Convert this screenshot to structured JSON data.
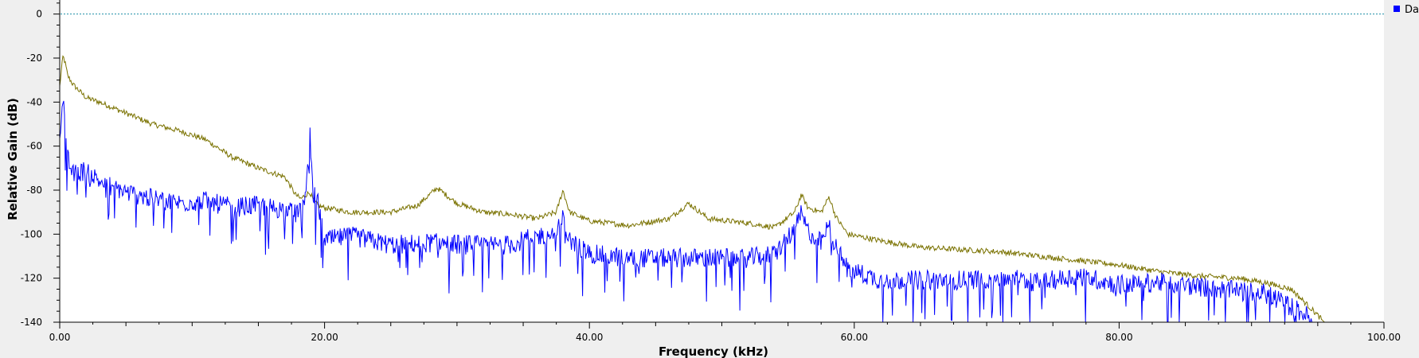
{
  "chart_data": {
    "type": "line",
    "xlabel": "Frequency (kHz)",
    "ylabel": "Relative Gain (dB)",
    "xlim": [
      0,
      100
    ],
    "ylim": [
      -140,
      10
    ],
    "x_ticks": [
      0,
      20,
      40,
      60,
      80,
      100
    ],
    "x_tick_labels": [
      "0.00",
      "20.00",
      "40.00",
      "60.00",
      "80.00",
      "100.00"
    ],
    "y_ticks": [
      0,
      -20,
      -40,
      -60,
      -80,
      -100,
      -120,
      -140
    ],
    "y_tick_labels": [
      "0",
      "-20",
      "-40",
      "-60",
      "-80",
      "-100",
      "-120",
      "-140"
    ],
    "grid": false,
    "legend_position": "top-right",
    "legend_entries": [
      {
        "label": "Da",
        "color": "#0000ff"
      }
    ],
    "reference_line": {
      "y": 0,
      "color": "#1f8fa8",
      "style": "dotted"
    },
    "series": [
      {
        "name": "Da",
        "color": "#0000ff",
        "x": [
          0,
          0.1,
          0.25,
          0.4,
          0.6,
          1,
          2,
          3,
          5,
          7,
          9,
          11,
          13,
          15,
          17,
          17.8,
          18.2,
          18.6,
          18.9,
          19.1,
          19.5,
          20,
          22,
          25,
          28,
          31,
          34,
          36,
          37.5,
          38.0,
          38.5,
          40,
          43,
          46,
          49,
          52,
          54,
          55.5,
          56.0,
          56.5,
          57.5,
          58.1,
          58.6,
          59.5,
          62,
          65,
          68,
          71,
          74,
          77,
          80,
          83,
          86,
          89,
          91,
          93,
          94.7
        ],
        "values": [
          -55,
          -45,
          -36,
          -50,
          -65,
          -72,
          -70,
          -75,
          -80,
          -83,
          -85,
          -84,
          -87,
          -86,
          -88,
          -90,
          -86,
          -80,
          -55,
          -80,
          -85,
          -102,
          -100,
          -104,
          -103,
          -104,
          -104,
          -100,
          -99,
          -92,
          -102,
          -108,
          -110,
          -110,
          -110,
          -110,
          -108,
          -97,
          -90,
          -98,
          -103,
          -95,
          -105,
          -115,
          -120,
          -120,
          -120,
          -119,
          -121,
          -118,
          -122,
          -121,
          -123,
          -125,
          -126,
          -132,
          -138
        ]
      },
      {
        "name": "",
        "color": "#7a7200",
        "x": [
          0,
          0.1,
          0.25,
          0.4,
          0.6,
          1,
          2,
          3,
          5,
          7,
          9,
          11,
          13,
          15,
          17,
          17.8,
          18.2,
          18.6,
          18.9,
          19.1,
          19.5,
          20,
          22,
          25,
          27,
          28.5,
          30,
          32,
          34,
          36,
          37.5,
          38.0,
          38.5,
          40,
          43,
          46,
          47.5,
          49,
          52,
          54,
          55.5,
          56.0,
          56.5,
          57.5,
          58.1,
          58.6,
          59.5,
          62,
          65,
          68,
          71,
          74,
          77,
          80,
          83,
          86,
          89,
          91,
          93,
          94.7,
          95.5,
          100
        ],
        "values": [
          -33,
          -27,
          -19,
          -22,
          -28,
          -32,
          -38,
          -40,
          -45,
          -50,
          -53,
          -57,
          -65,
          -70,
          -74,
          -82,
          -84,
          -82,
          -81,
          -84,
          -87,
          -88,
          -90,
          -90,
          -87,
          -79,
          -86,
          -90,
          -91,
          -93,
          -90,
          -80,
          -90,
          -94,
          -96,
          -93,
          -86,
          -93,
          -95,
          -97,
          -90,
          -82,
          -88,
          -90,
          -83,
          -92,
          -100,
          -103,
          -106,
          -107,
          -108,
          -110,
          -112,
          -114,
          -117,
          -119,
          -120,
          -122,
          -125,
          -135,
          -140,
          -140
        ]
      }
    ]
  }
}
